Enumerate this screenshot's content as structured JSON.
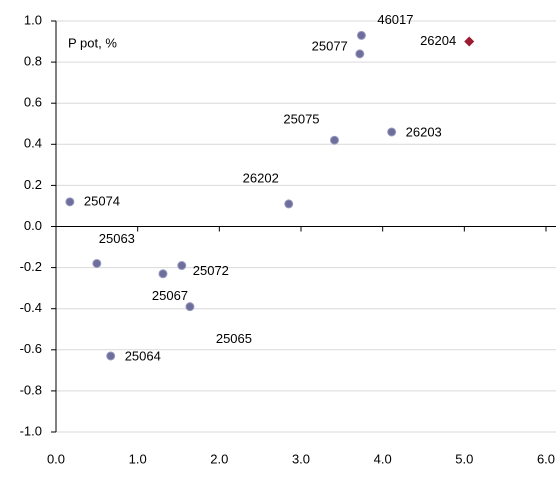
{
  "chart_data": {
    "type": "scatter",
    "y_axis_label": "P pot, %",
    "series": [
      {
        "marker": "circle",
        "color": "#6e6e9c",
        "x": [
          0.17,
          0.5,
          0.67,
          1.31,
          1.54,
          1.64,
          2.85,
          3.41,
          4.11,
          3.72,
          3.74
        ],
        "values": [
          0.12,
          -0.18,
          -0.63,
          -0.23,
          -0.19,
          -0.39,
          0.11,
          0.42,
          0.46,
          0.84,
          0.93
        ],
        "labels": [
          "25074",
          "25063",
          "25064",
          "25067",
          "25072",
          "25065",
          "26202",
          "25075",
          "26203",
          "25077",
          "46017"
        ]
      },
      {
        "marker": "diamond",
        "color": "#9b1b30",
        "x": [
          5.06
        ],
        "values": [
          0.9
        ],
        "labels": [
          "26204"
        ]
      }
    ],
    "xlim": [
      0,
      6
    ],
    "ylim": [
      -1,
      1
    ],
    "xticks": [
      {
        "value": 0,
        "label": "0.0"
      },
      {
        "value": 1,
        "label": "1.0"
      },
      {
        "value": 2,
        "label": "2.0"
      },
      {
        "value": 3,
        "label": "3.0"
      },
      {
        "value": 4,
        "label": "4.0"
      },
      {
        "value": 5,
        "label": "5.0"
      },
      {
        "value": 6,
        "label": "6.0"
      }
    ],
    "yticks": [
      {
        "value": -1,
        "label": "-1.0"
      },
      {
        "value": -0.8,
        "label": "-0.8"
      },
      {
        "value": -0.6,
        "label": "-0.6"
      },
      {
        "value": -0.4,
        "label": "-0.4"
      },
      {
        "value": -0.2,
        "label": "-0.2"
      },
      {
        "value": 0,
        "label": "0.0"
      },
      {
        "value": 0.2,
        "label": "0.2"
      },
      {
        "value": 0.4,
        "label": "0.4"
      },
      {
        "value": 0.6,
        "label": "0.6"
      },
      {
        "value": 0.8,
        "label": "0.8"
      },
      {
        "value": 1,
        "label": "1.0"
      }
    ],
    "grid": true
  }
}
